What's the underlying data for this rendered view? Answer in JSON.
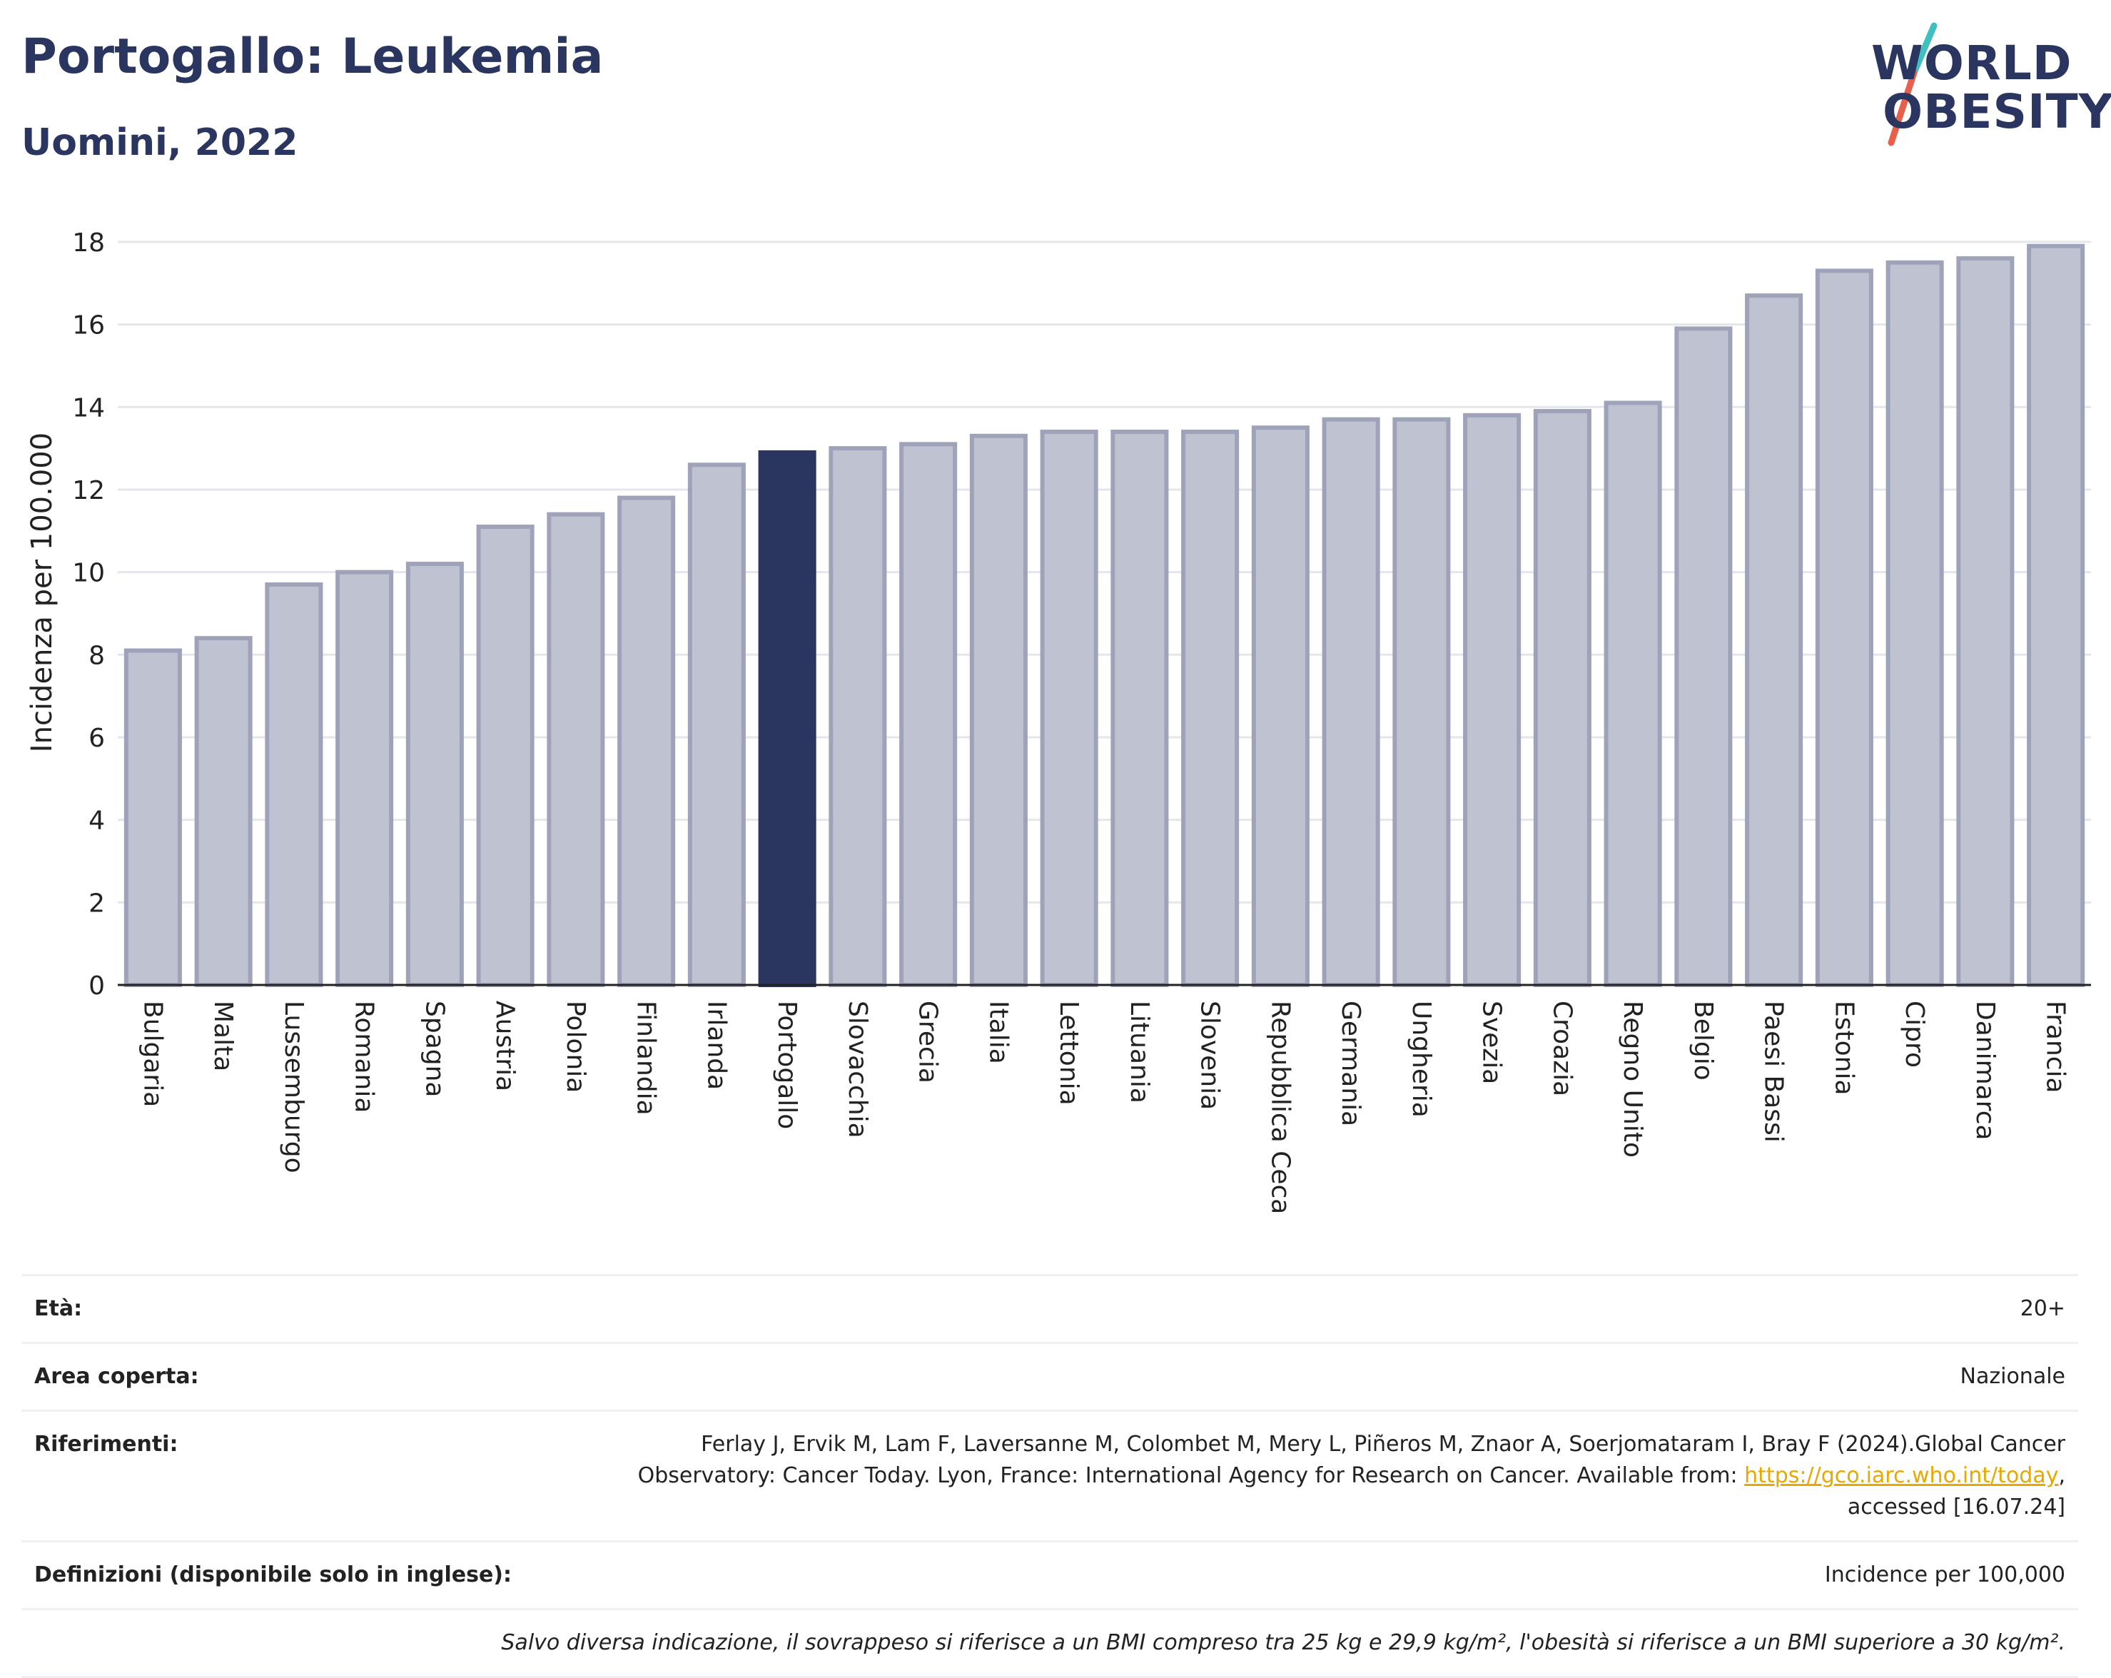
{
  "header": {
    "title": "Portogallo: Leukemia",
    "subtitle": "Uomini, 2022"
  },
  "logo": {
    "line1": "WORLD",
    "line2": "OBESITY",
    "colors": {
      "text": "#2b3660",
      "slash_top": "#3fbfbf",
      "slash_bottom": "#e8604c"
    }
  },
  "chart_data": {
    "type": "bar",
    "title": "Portogallo: Leukemia",
    "subtitle": "Uomini, 2022",
    "ylabel": "Incidenza per 100.000",
    "xlabel": "",
    "ylim": [
      0,
      18.5
    ],
    "yticks": [
      0,
      2,
      4,
      6,
      8,
      10,
      12,
      14,
      16,
      18
    ],
    "grid": true,
    "highlight": "Portogallo",
    "colors": {
      "bar": "#bfc3d1",
      "bar_edge": "#9ea3b9",
      "highlight": "#2b3660"
    },
    "categories": [
      "Bulgaria",
      "Malta",
      "Lussemburgo",
      "Romania",
      "Spagna",
      "Austria",
      "Polonia",
      "Finlandia",
      "Irlanda",
      "Portogallo",
      "Slovacchia",
      "Grecia",
      "Italia",
      "Lettonia",
      "Lituania",
      "Slovenia",
      "Repubblica Ceca",
      "Germania",
      "Ungheria",
      "Svezia",
      "Croazia",
      "Regno Unito",
      "Belgio",
      "Paesi Bassi",
      "Estonia",
      "Cipro",
      "Danimarca",
      "Francia"
    ],
    "values": [
      8.1,
      8.4,
      9.7,
      10.0,
      10.2,
      11.1,
      11.4,
      11.8,
      12.6,
      12.9,
      13.0,
      13.1,
      13.3,
      13.4,
      13.4,
      13.4,
      13.5,
      13.7,
      13.7,
      13.8,
      13.9,
      14.1,
      15.9,
      16.7,
      17.3,
      17.5,
      17.6,
      17.9
    ]
  },
  "info": {
    "age_label": "Età:",
    "age_value": "20+",
    "area_label": "Area coperta:",
    "area_value": "Nazionale",
    "refs_label": "Riferimenti:",
    "refs_text": "Ferlay J, Ervik M, Lam F, Laversanne M, Colombet M, Mery L, Piñeros M, Znaor A, Soerjomataram I, Bray F (2024).Global Cancer Observatory: Cancer Today. Lyon, France: International Agency for Research on Cancer. Available from:",
    "refs_link": "https://gco.iarc.who.int/today",
    "refs_tail": ", accessed [16.07.24]",
    "defs_label": "Definizioni (disponibile solo in inglese):",
    "defs_value": "Incidence per 100,000",
    "footnote": "Salvo diversa indicazione, il sovrappeso si riferisce a un BMI compreso tra 25 kg e 29,9 kg/m², l'obesità si riferisce a un BMI superiore a 30 kg/m²."
  }
}
